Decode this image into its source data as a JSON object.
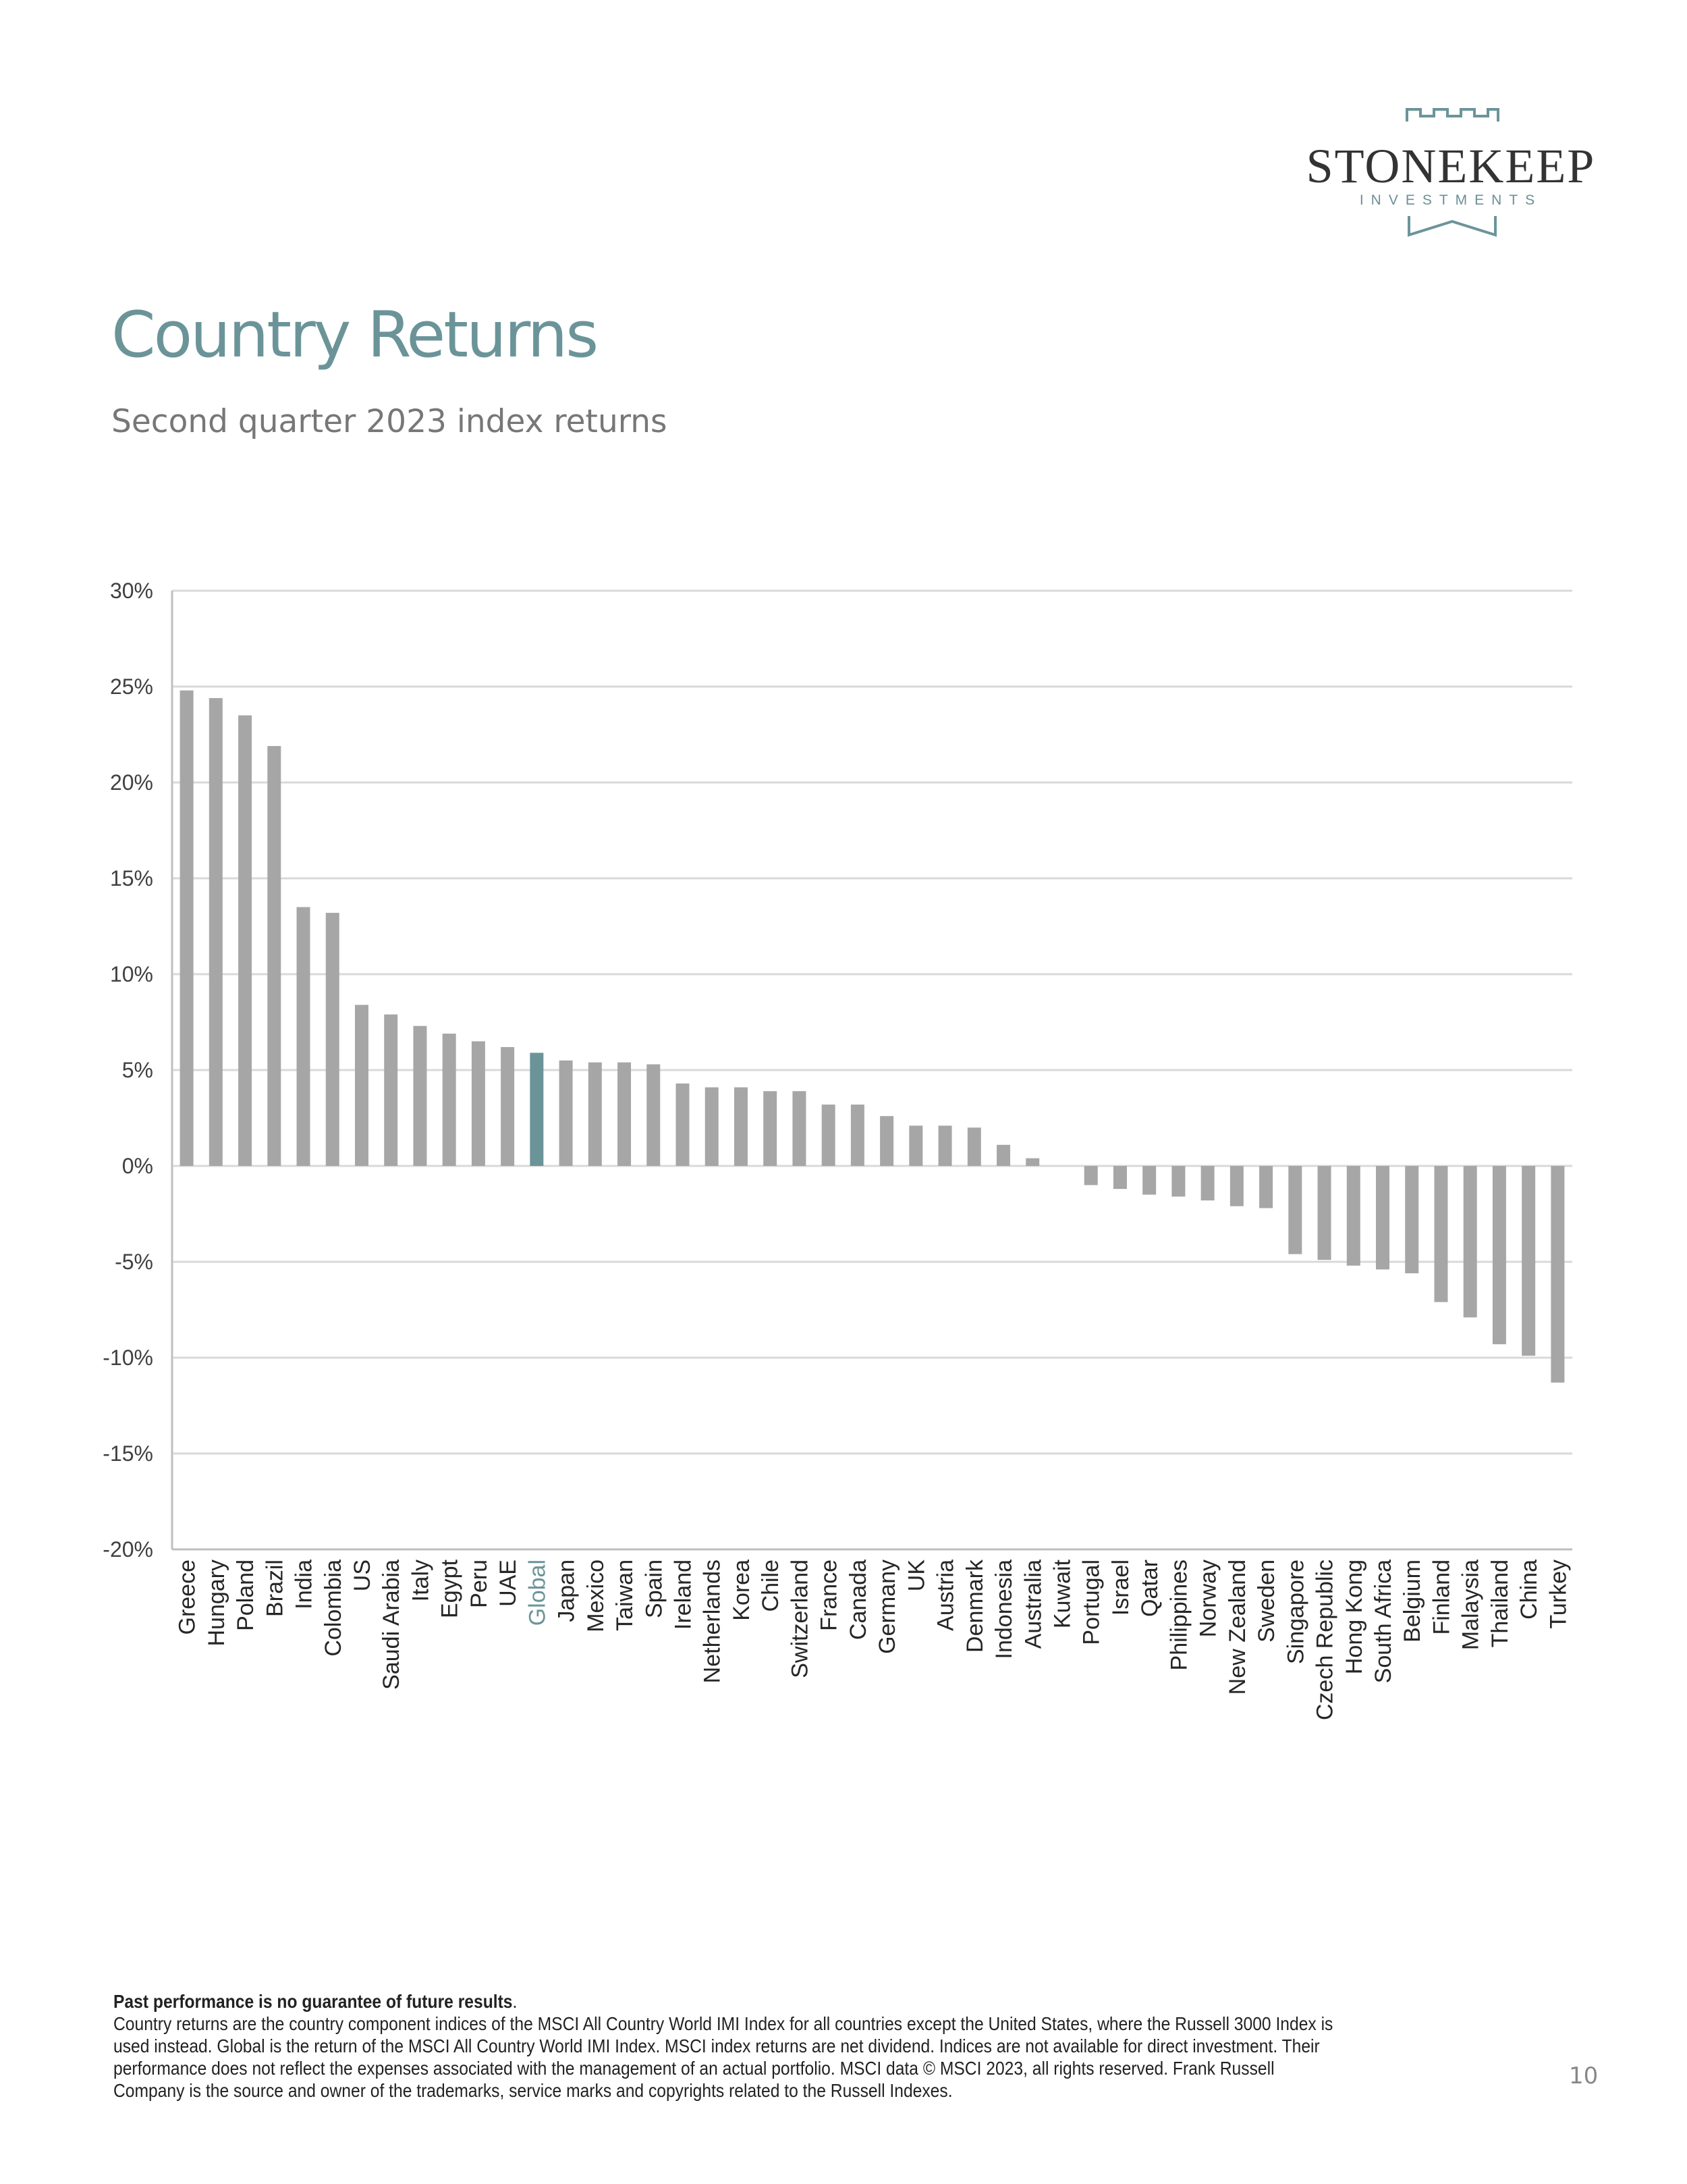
{
  "logo": {
    "name": "STONEKEEP",
    "sub": "INVESTMENTS"
  },
  "page": {
    "title": "Country Returns",
    "subtitle": "Second quarter 2023 index returns",
    "footnote_bold": "Past performance is no guarantee of future results",
    "footnote_text": "Country returns are the country component indices of the MSCI All Country World IMI Index for all countries except the United States, where the Russell 3000 Index is used instead. Global is the return of the MSCI All Country World IMI Index. MSCI index returns are net dividend. Indices are not available for direct investment. Their performance does not reflect the expenses associated with the management of an actual portfolio. MSCI data © MSCI 2023, all rights reserved. Frank Russell Company is the source and owner of the trademarks, service marks and copyrights related to the Russell Indexes.",
    "page_number": "10"
  },
  "colors": {
    "bar": "#a6a6a6",
    "highlight": "#6b9499",
    "grid": "#d9d9d9",
    "axis": "#bfbfbf"
  },
  "chart_data": {
    "type": "bar",
    "categories": [
      "Greece",
      "Hungary",
      "Poland",
      "Brazil",
      "India",
      "Colombia",
      "US",
      "Saudi Arabia",
      "Italy",
      "Egypt",
      "Peru",
      "UAE",
      "Global",
      "Japan",
      "Mexico",
      "Taiwan",
      "Spain",
      "Ireland",
      "Netherlands",
      "Korea",
      "Chile",
      "Switzerland",
      "France",
      "Canada",
      "Germany",
      "UK",
      "Austria",
      "Denmark",
      "Indonesia",
      "Australia",
      "Kuwait",
      "Portugal",
      "Israel",
      "Qatar",
      "Philippines",
      "Norway",
      "New Zealand",
      "Sweden",
      "Singapore",
      "Czech Republic",
      "Hong Kong",
      "South Africa",
      "Belgium",
      "Finland",
      "Malaysia",
      "Thailand",
      "China",
      "Turkey"
    ],
    "values": [
      24.8,
      24.4,
      23.5,
      21.9,
      13.5,
      13.2,
      8.4,
      7.9,
      7.3,
      6.9,
      6.5,
      6.2,
      5.9,
      5.5,
      5.4,
      5.4,
      5.3,
      4.3,
      4.1,
      4.1,
      3.9,
      3.9,
      3.2,
      3.2,
      2.6,
      2.1,
      2.1,
      2.0,
      1.1,
      0.4,
      0.0,
      -1.0,
      -1.2,
      -1.5,
      -1.6,
      -1.8,
      -2.1,
      -2.2,
      -4.6,
      -4.9,
      -5.2,
      -5.4,
      -5.6,
      -7.1,
      -7.9,
      -9.3,
      -9.9,
      -11.3
    ],
    "highlight": "Global",
    "ylim": [
      -20,
      30
    ],
    "yticks": [
      "30%",
      "25%",
      "20%",
      "15%",
      "10%",
      "5%",
      "0%",
      "-5%",
      "-10%",
      "-15%",
      "-20%"
    ],
    "grid": true,
    "xlabel": "",
    "ylabel": ""
  }
}
